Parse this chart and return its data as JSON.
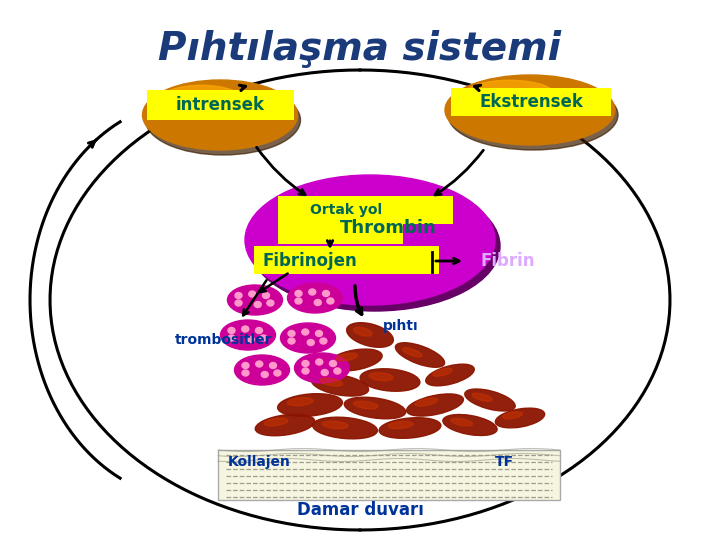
{
  "title": "Pıhtılaşma sistemi",
  "title_color": "#1a3a7a",
  "bg_color": "#ffffff",
  "intrensek_label": "intrensek",
  "ekstrensek_label": "Ekstrensek",
  "ortak_yol_label": "Ortak yol",
  "thrombin_label": "Thrombin",
  "fibrinojen_label": "Fibrinojen",
  "fibrin_label": "Fibrin",
  "trombositler_label": "trombositler",
  "pihti_label": "pıhtı",
  "kollajen_label": "Kollajen",
  "tf_label": "TF",
  "damar_label": "Damar duvarı",
  "yellow_bg": "#ffff00",
  "orange_dark": "#3d1e00",
  "orange_mid": "#cc7700",
  "orange_light": "#ffaa00",
  "purple_ellipse": "#cc00cc",
  "dark_purple": "#660066",
  "pink_platelet": "#cc0099",
  "pink_light": "#ff99cc",
  "dark_red": "#8b1500",
  "text_dark_blue": "#1a3a6b",
  "text_blue": "#003399",
  "text_teal": "#006655"
}
